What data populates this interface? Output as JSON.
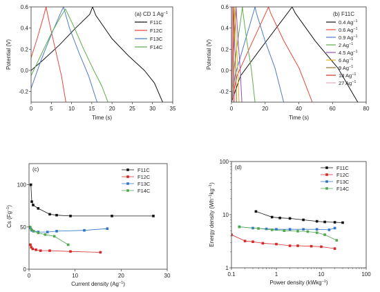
{
  "chart_data": [
    {
      "type": "line",
      "title": "(a) CD 1 Ag",
      "title_sup": "−1",
      "xlabel": "Time (s)",
      "ylabel": "Potential (V)",
      "xlim": [
        0,
        35
      ],
      "ylim": [
        -0.3,
        0.6
      ],
      "xticks": [
        "0",
        "5",
        "10",
        "15",
        "20",
        "25",
        "30",
        "35"
      ],
      "yticks": [
        "-0.2",
        "0.0",
        "0.2",
        "0.4",
        "0.6"
      ],
      "legend_placement": "top-right",
      "series": [
        {
          "name": "F11C",
          "color": "#111111",
          "points": [
            [
              0,
              0
            ],
            [
              3,
              0.1
            ],
            [
              7,
              0.24
            ],
            [
              11,
              0.4
            ],
            [
              14.5,
              0.53
            ],
            [
              15.2,
              0.6
            ],
            [
              16,
              0.52
            ],
            [
              20,
              0.3
            ],
            [
              24,
              0.14
            ],
            [
              28,
              0
            ],
            [
              30.5,
              -0.12
            ],
            [
              32.5,
              -0.3
            ]
          ]
        },
        {
          "name": "F12C",
          "color": "#e8463a",
          "points": [
            [
              0,
              0.12
            ],
            [
              1.5,
              0.3
            ],
            [
              3,
              0.5
            ],
            [
              3.7,
              0.6
            ],
            [
              4.5,
              0.45
            ],
            [
              6,
              0.2
            ],
            [
              7.5,
              -0.05
            ],
            [
              8.6,
              -0.3
            ]
          ]
        },
        {
          "name": "F13C",
          "color": "#4d7cc8",
          "points": [
            [
              0,
              -0.17
            ],
            [
              2.5,
              0.1
            ],
            [
              5,
              0.34
            ],
            [
              7.5,
              0.56
            ],
            [
              8,
              0.6
            ],
            [
              9.5,
              0.4
            ],
            [
              12,
              0.15
            ],
            [
              14.2,
              -0.05
            ],
            [
              16.3,
              -0.3
            ]
          ]
        },
        {
          "name": "F14C",
          "color": "#5fae4a",
          "points": [
            [
              0,
              -0.05
            ],
            [
              2.5,
              0.15
            ],
            [
              5,
              0.35
            ],
            [
              7.5,
              0.52
            ],
            [
              8.5,
              0.58
            ],
            [
              10.5,
              0.42
            ],
            [
              13,
              0.2
            ],
            [
              15.5,
              0
            ],
            [
              17.5,
              -0.15
            ],
            [
              19,
              -0.3
            ]
          ]
        }
      ]
    },
    {
      "type": "line",
      "title": "(b) F11C",
      "xlabel": "Time (s)",
      "ylabel": "Potential (V)",
      "xlim": [
        0,
        80
      ],
      "ylim": [
        -0.3,
        0.6
      ],
      "xticks": [
        "0",
        "20",
        "40",
        "60",
        "80"
      ],
      "yticks": [
        "-0.2",
        "0.0",
        "0.2",
        "0.4",
        "0.6"
      ],
      "legend_placement": "top-right",
      "series": [
        {
          "name": "0.4 Ag",
          "sup": "−1",
          "color": "#111111",
          "peak": 36,
          "end": 75
        },
        {
          "name": "0.6 Ag",
          "sup": "−1",
          "color": "#e8463a",
          "peak": 22,
          "end": 48
        },
        {
          "name": "0.9 Ag",
          "sup": "−1",
          "color": "#4d7cc8",
          "peak": 14,
          "end": 31
        },
        {
          "name": "2 Ag",
          "sup": "−1",
          "color": "#5fae4a",
          "peak": 6.5,
          "end": 14
        },
        {
          "name": "4.5 Ag",
          "sup": "−1",
          "color": "#9a4fb0",
          "peak": 2.8,
          "end": 6.2
        },
        {
          "name": "6 Ag",
          "sup": "−1",
          "color": "#e0b21e",
          "peak": 2,
          "end": 4.5
        },
        {
          "name": "9 Ag",
          "sup": "−1",
          "color": "#9c6a2a",
          "peak": 1.3,
          "end": 3
        },
        {
          "name": "18 Ag",
          "sup": "−1",
          "color": "#cc2e2e",
          "peak": 0.7,
          "end": 1.6
        },
        {
          "name": "27 Ag",
          "sup": "−1",
          "color": "#f2a8b8",
          "peak": 0.5,
          "end": 1.1
        }
      ]
    },
    {
      "type": "scatter",
      "title": "(c)",
      "xlabel": "Current density (Ag",
      "xlabel_sup": "−1",
      "xlabel_end": ")",
      "ylabel": "Cs (Fg",
      "ylabel_sup": "−1",
      "ylabel_end": ")",
      "xlim": [
        0,
        30
      ],
      "ylim": [
        0,
        125
      ],
      "xticks": [
        "0",
        "10",
        "20",
        "30"
      ],
      "yticks": [
        "0",
        "50",
        "100"
      ],
      "legend_placement": "top-right",
      "series": [
        {
          "name": "F11C",
          "color": "#111111",
          "points": [
            [
              0.4,
              100
            ],
            [
              0.6,
              80
            ],
            [
              0.9,
              76
            ],
            [
              2,
              72
            ],
            [
              4.5,
              65
            ],
            [
              6,
              64
            ],
            [
              9,
              63
            ],
            [
              18,
              63
            ],
            [
              27,
              63
            ]
          ]
        },
        {
          "name": "F12C",
          "color": "#d62828",
          "points": [
            [
              0.3,
              29
            ],
            [
              0.5,
              26
            ],
            [
              0.8,
              24
            ],
            [
              1.5,
              23
            ],
            [
              2.5,
              22
            ],
            [
              4.5,
              22
            ],
            [
              9,
              21
            ],
            [
              15.5,
              20
            ]
          ]
        },
        {
          "name": "F13C",
          "color": "#2e74c9",
          "points": [
            [
              0.3,
              49
            ],
            [
              0.6,
              46
            ],
            [
              1,
              45
            ],
            [
              2,
              44
            ],
            [
              4,
              44
            ],
            [
              6,
              45
            ],
            [
              12,
              46
            ],
            [
              17,
              48
            ]
          ]
        },
        {
          "name": "F14C",
          "color": "#4fa84f",
          "points": [
            [
              0.2,
              50
            ],
            [
              0.5,
              47
            ],
            [
              1,
              45
            ],
            [
              2,
              43
            ],
            [
              3.5,
              41
            ],
            [
              5.5,
              39
            ],
            [
              8.5,
              29
            ]
          ]
        }
      ]
    },
    {
      "type": "scatter",
      "title": "(d)",
      "xlabel": "Power density (kWkg",
      "xlabel_sup": "−1",
      "xlabel_end": ")",
      "ylabel": "Energy density (Wh",
      "ylabel_sup": "−1",
      "ylabel_mid": "kg",
      "ylabel_sup2": "−1",
      "ylabel_end": ")",
      "xscale": "log",
      "yscale": "log",
      "xlim": [
        0.1,
        100
      ],
      "ylim": [
        1,
        100
      ],
      "xticks": [
        "0.1",
        "1",
        "10",
        "100"
      ],
      "yticks": [
        "1",
        "10",
        "100"
      ],
      "legend_placement": "top-right",
      "series": [
        {
          "name": "F11C",
          "color": "#111111",
          "points": [
            [
              0.35,
              11.5
            ],
            [
              0.8,
              9
            ],
            [
              1.2,
              8.7
            ],
            [
              2,
              8.5
            ],
            [
              4,
              8
            ],
            [
              8,
              7.5
            ],
            [
              12,
              7.3
            ],
            [
              20,
              7.2
            ],
            [
              30,
              7.1
            ]
          ]
        },
        {
          "name": "F12C",
          "color": "#d62828",
          "points": [
            [
              0.1,
              4.2
            ],
            [
              0.2,
              3.2
            ],
            [
              0.3,
              3.1
            ],
            [
              0.5,
              2.9
            ],
            [
              1,
              2.8
            ],
            [
              2,
              2.6
            ],
            [
              3,
              2.6
            ],
            [
              6,
              2.55
            ],
            [
              10,
              2.5
            ],
            [
              20,
              2.3
            ]
          ]
        },
        {
          "name": "F13C",
          "color": "#2e74c9",
          "points": [
            [
              0.15,
              5.9
            ],
            [
              0.3,
              5.6
            ],
            [
              0.6,
              5.4
            ],
            [
              1,
              5.3
            ],
            [
              2,
              5.3
            ],
            [
              4,
              5.3
            ],
            [
              8,
              5.3
            ],
            [
              15,
              5.2
            ],
            [
              20,
              5.6
            ]
          ]
        },
        {
          "name": "F14C",
          "color": "#4fa84f",
          "points": [
            [
              0.15,
              5.9
            ],
            [
              0.4,
              5.5
            ],
            [
              0.8,
              5.2
            ],
            [
              1.5,
              5
            ],
            [
              3,
              4.9
            ],
            [
              5,
              4.8
            ],
            [
              8,
              4.6
            ],
            [
              12,
              4.2
            ],
            [
              22,
              3.3
            ]
          ]
        }
      ]
    }
  ]
}
